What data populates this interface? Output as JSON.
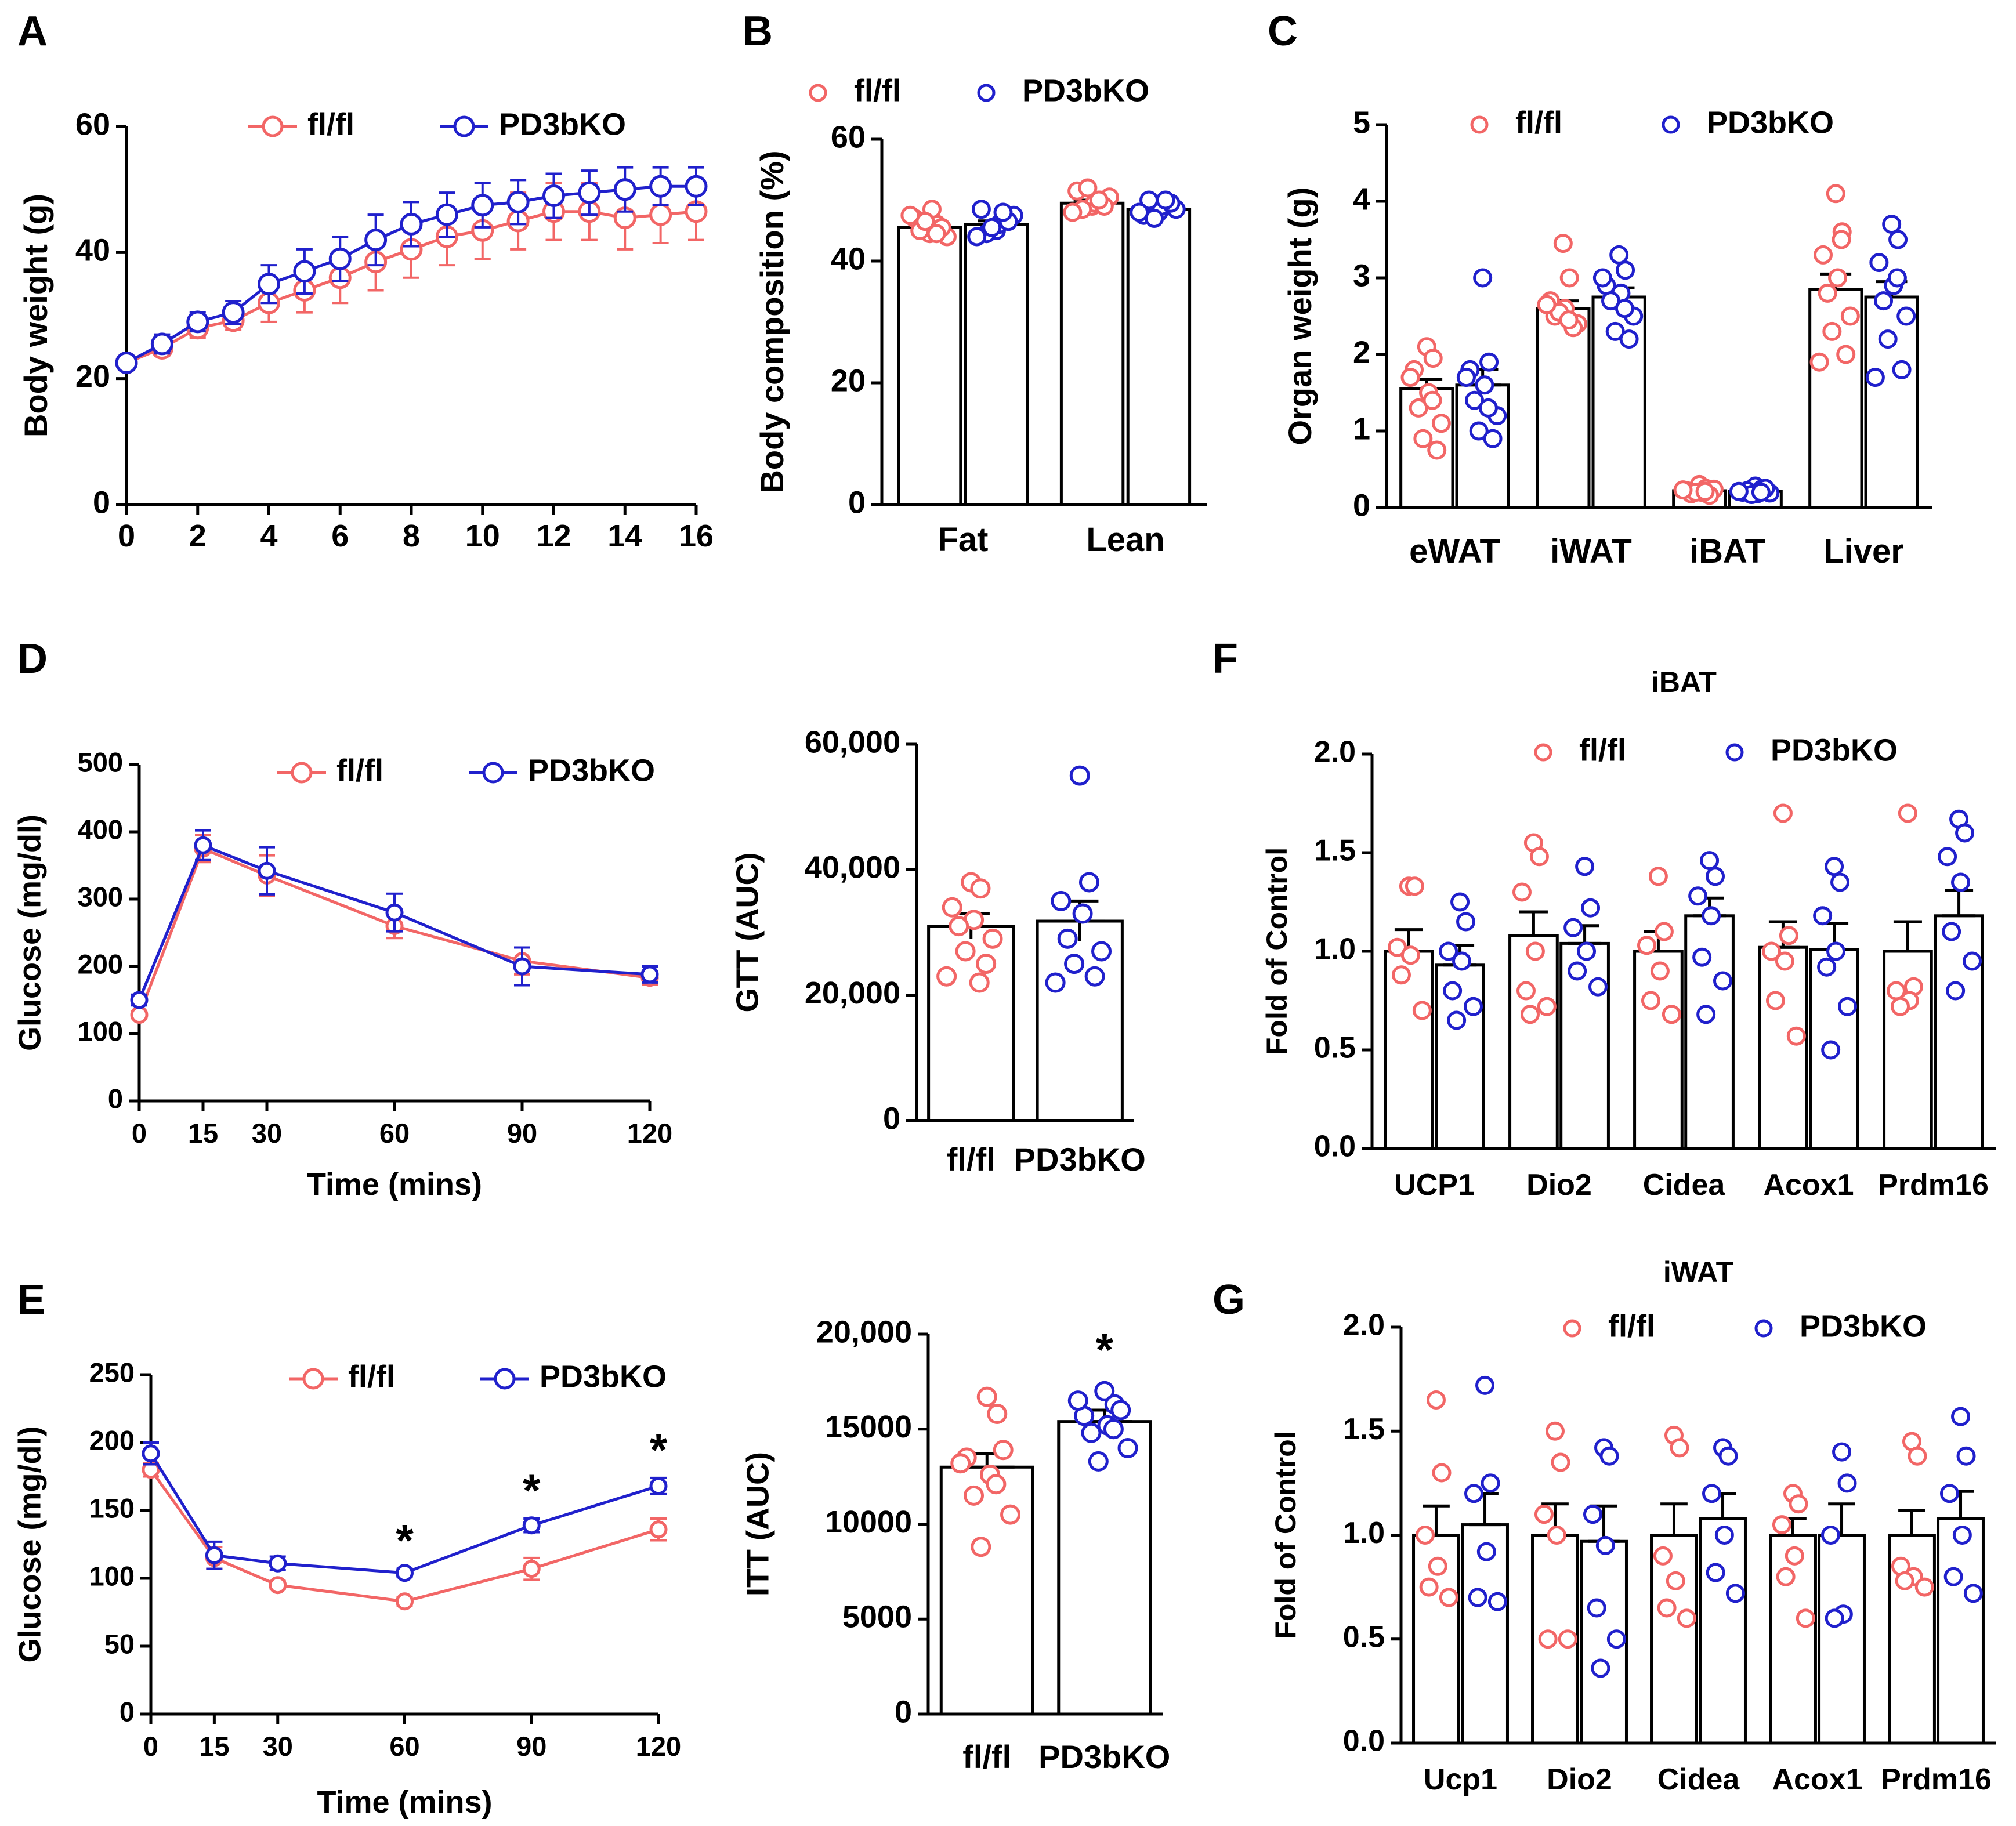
{
  "colors": {
    "flfl": "#f26666",
    "ko": "#2020cc",
    "axis": "#000000"
  },
  "chart_data": [
    {
      "id": "A",
      "type": "line",
      "panel_letter": "A",
      "ylabel": "Body weight (g)",
      "xlabel": "",
      "xlim": [
        0,
        16
      ],
      "ylim": [
        0,
        60
      ],
      "xticks": [
        0,
        2,
        4,
        6,
        8,
        10,
        12,
        14,
        16
      ],
      "yticks": [
        0,
        20,
        40,
        60
      ],
      "legend": [
        "fl/fl",
        "PD3bKO"
      ],
      "x": [
        0,
        1,
        2,
        3,
        4,
        5,
        6,
        7,
        8,
        9,
        10,
        11,
        12,
        13,
        14,
        15,
        16
      ],
      "series": [
        {
          "name": "fl/fl",
          "color": "flfl",
          "values": [
            22.5,
            24.8,
            28,
            29.2,
            32,
            34,
            36,
            38.5,
            40.5,
            42.5,
            43.5,
            45,
            46.5,
            46.5,
            45.5,
            46,
            46.5
          ],
          "err": [
            1,
            1.2,
            1.5,
            1.5,
            3,
            3.5,
            4,
            4.5,
            4.5,
            4.5,
            4.5,
            4.5,
            4.5,
            4.5,
            5,
            4.5,
            4.5
          ]
        },
        {
          "name": "PD3bKO",
          "color": "ko",
          "values": [
            22.5,
            25.5,
            29,
            30.5,
            35,
            37,
            39,
            42,
            44.5,
            46,
            47.5,
            48,
            49,
            49.5,
            50,
            50.5,
            50.5
          ],
          "err": [
            1,
            1.5,
            1.5,
            1.8,
            3,
            3.5,
            3.5,
            4,
            3.5,
            3.5,
            3.5,
            3.5,
            3.5,
            3.5,
            3.5,
            3,
            3
          ]
        }
      ]
    },
    {
      "id": "B",
      "type": "bar",
      "panel_letter": "B",
      "ylabel": "Body composition (%)",
      "ylim": [
        0,
        60
      ],
      "yticks": [
        0,
        20,
        40,
        60
      ],
      "legend": [
        "fl/fl",
        "PD3bKO"
      ],
      "categories": [
        "Fat",
        "Lean"
      ],
      "series": [
        {
          "name": "fl/fl",
          "color": "flfl",
          "values": [
            45.5,
            49.5
          ],
          "err": [
            0.6,
            0.5
          ],
          "points": [
            [
              44.5,
              46,
              47,
              48.5,
              45,
              44,
              46.5,
              45.5,
              47.5,
              44.5
            ],
            [
              49,
              50,
              51.5,
              49.5,
              48.5,
              50.5,
              52,
              49,
              48,
              50
            ]
          ]
        },
        {
          "name": "PD3bKO",
          "color": "ko",
          "values": [
            46,
            48.5
          ],
          "err": [
            0.6,
            0.5
          ],
          "points": [
            [
              45,
              47,
              48.5,
              46,
              44.5,
              47.5,
              45.5,
              46.5,
              44,
              48
            ],
            [
              48,
              49.5,
              47.5,
              49,
              50,
              48.5,
              47,
              49.5,
              48,
              50
            ]
          ]
        }
      ]
    },
    {
      "id": "C",
      "type": "bar",
      "panel_letter": "C",
      "ylabel": "Organ weight (g)",
      "ylim": [
        0,
        5
      ],
      "yticks": [
        0,
        1,
        2,
        3,
        4,
        5
      ],
      "legend": [
        "fl/fl",
        "PD3bKO"
      ],
      "categories": [
        "eWAT",
        "iWAT",
        "iBAT",
        "Liver"
      ],
      "series": [
        {
          "name": "fl/fl",
          "color": "flfl",
          "values": [
            1.55,
            2.6,
            0.22,
            2.85
          ],
          "err": [
            0.12,
            0.1,
            0.02,
            0.2
          ],
          "points": [
            [
              2.1,
              1.95,
              1.8,
              1.5,
              1.3,
              1.1,
              0.9,
              0.75,
              1.7,
              1.4
            ],
            [
              3.45,
              3.0,
              2.7,
              2.6,
              2.5,
              2.4,
              2.55,
              2.35,
              2.65,
              2.45
            ],
            [
              0.3,
              0.25,
              0.22,
              0.2,
              0.18,
              0.24,
              0.2,
              0.16,
              0.23,
              0.21
            ],
            [
              4.1,
              3.6,
              3.3,
              3.0,
              2.8,
              2.5,
              2.3,
              2.0,
              1.9,
              3.5
            ]
          ]
        },
        {
          "name": "PD3bKO",
          "color": "ko",
          "values": [
            1.6,
            2.75,
            0.21,
            2.75
          ],
          "err": [
            0.2,
            0.12,
            0.02,
            0.2
          ],
          "points": [
            [
              3.0,
              1.9,
              1.8,
              1.6,
              1.4,
              1.2,
              1.0,
              0.9,
              1.7,
              1.3
            ],
            [
              3.3,
              3.1,
              2.9,
              2.8,
              2.7,
              2.5,
              2.3,
              2.2,
              3.0,
              2.6
            ],
            [
              0.28,
              0.24,
              0.2,
              0.18,
              0.22,
              0.19,
              0.17,
              0.25,
              0.21,
              0.2
            ],
            [
              3.7,
              3.5,
              3.2,
              2.9,
              2.7,
              2.5,
              2.2,
              1.8,
              1.7,
              3.0
            ]
          ]
        }
      ]
    },
    {
      "id": "D1",
      "type": "line",
      "panel_letter": "D",
      "ylabel": "Glucose (mg/dl)",
      "xlabel": "Time (mins)",
      "xlim": [
        0,
        120
      ],
      "ylim": [
        0,
        500
      ],
      "xticks": [
        0,
        15,
        30,
        60,
        90,
        120
      ],
      "yticks": [
        0,
        100,
        200,
        300,
        400,
        500
      ],
      "legend": [
        "fl/fl",
        "PD3bKO"
      ],
      "x": [
        0,
        15,
        30,
        60,
        90,
        120
      ],
      "series": [
        {
          "name": "fl/fl",
          "color": "flfl",
          "values": [
            128,
            375,
            335,
            260,
            208,
            183
          ],
          "err": [
            5,
            20,
            30,
            18,
            20,
            10
          ]
        },
        {
          "name": "PD3bKO",
          "color": "ko",
          "values": [
            150,
            380,
            342,
            280,
            200,
            188
          ],
          "err": [
            8,
            22,
            35,
            28,
            28,
            12
          ]
        }
      ]
    },
    {
      "id": "D2",
      "type": "bar",
      "panel_letter": "",
      "ylabel": "GTT (AUC)",
      "ylim": [
        0,
        60000
      ],
      "yticks": [
        0,
        20000,
        40000,
        60000
      ],
      "ytick_labels": [
        "0",
        "20,000",
        "40,000",
        "60,000"
      ],
      "categories": [
        "fl/fl",
        "PD3bKO"
      ],
      "values": [
        31000,
        31800
      ],
      "err": [
        2000,
        3200
      ],
      "bar_colors": [
        "flfl",
        "ko"
      ],
      "points": [
        [
          38000,
          37000,
          34000,
          32000,
          31000,
          29000,
          27000,
          25000,
          23000,
          22000
        ],
        [
          55000,
          38000,
          35000,
          33000,
          29000,
          27000,
          25000,
          23000,
          22000
        ]
      ]
    },
    {
      "id": "E1",
      "type": "line",
      "panel_letter": "E",
      "ylabel": "Glucose (mg/dl)",
      "xlabel": "Time (mins)",
      "xlim": [
        0,
        120
      ],
      "ylim": [
        0,
        250
      ],
      "xticks": [
        0,
        15,
        30,
        60,
        90,
        120
      ],
      "yticks": [
        0,
        50,
        100,
        150,
        200,
        250
      ],
      "legend": [
        "fl/fl",
        "PD3bKO"
      ],
      "x": [
        0,
        15,
        30,
        60,
        90,
        120
      ],
      "series": [
        {
          "name": "fl/fl",
          "color": "flfl",
          "values": [
            180,
            115,
            95,
            83,
            107,
            136
          ],
          "err": [
            5,
            8,
            3,
            3,
            8,
            8
          ]
        },
        {
          "name": "PD3bKO",
          "color": "ko",
          "values": [
            192,
            117,
            111,
            104,
            139,
            168
          ],
          "err": [
            8,
            10,
            5,
            3,
            5,
            6
          ]
        }
      ],
      "significance": [
        {
          "x": 60,
          "label": "*"
        },
        {
          "x": 90,
          "label": "*"
        },
        {
          "x": 120,
          "label": "*"
        }
      ]
    },
    {
      "id": "E2",
      "type": "bar",
      "panel_letter": "",
      "ylabel": "ITT (AUC)",
      "ylim": [
        0,
        20000
      ],
      "yticks": [
        0,
        5000,
        10000,
        15000,
        20000
      ],
      "ytick_labels": [
        "0",
        "5000",
        "10000",
        "15000",
        "20,000"
      ],
      "categories": [
        "fl/fl",
        "PD3bKO"
      ],
      "values": [
        13000,
        15400
      ],
      "err": [
        700,
        600
      ],
      "bar_colors": [
        "flfl",
        "ko"
      ],
      "points": [
        [
          16700,
          15800,
          13500,
          12600,
          11500,
          10500,
          8800,
          13900,
          13200,
          12100
        ],
        [
          17000,
          16300,
          15700,
          15200,
          14800,
          14000,
          13300,
          16000,
          16500,
          15000
        ]
      ],
      "significance": [
        {
          "category": "PD3bKO",
          "label": "*"
        }
      ]
    },
    {
      "id": "F",
      "type": "bar",
      "panel_letter": "F",
      "title": "iBAT",
      "ylabel": "Fold of Control",
      "ylim": [
        0,
        2.0
      ],
      "yticks": [
        0,
        0.5,
        1.0,
        1.5,
        2.0
      ],
      "ytick_labels": [
        "0.0",
        "0.5",
        "1.0",
        "1.5",
        "2.0"
      ],
      "legend": [
        "fl/fl",
        "PD3bKO"
      ],
      "categories": [
        "UCP1",
        "Dio2",
        "Cidea",
        "Acox1",
        "Prdm16"
      ],
      "series": [
        {
          "name": "fl/fl",
          "color": "flfl",
          "values": [
            1.0,
            1.08,
            1.0,
            1.02,
            1.0
          ],
          "err": [
            0.11,
            0.12,
            0.1,
            0.13,
            0.15
          ],
          "points": [
            [
              1.33,
              1.33,
              1.02,
              0.98,
              0.88,
              0.7
            ],
            [
              1.55,
              1.48,
              1.3,
              1.0,
              0.8,
              0.72,
              0.68
            ],
            [
              1.38,
              1.1,
              1.03,
              0.9,
              0.75,
              0.68
            ],
            [
              1.7,
              1.08,
              1.0,
              0.95,
              0.75,
              0.57
            ],
            [
              1.7,
              0.82,
              0.8,
              0.75,
              0.72
            ]
          ]
        },
        {
          "name": "PD3bKO",
          "color": "ko",
          "values": [
            0.93,
            1.04,
            1.18,
            1.01,
            1.18
          ],
          "err": [
            0.1,
            0.09,
            0.09,
            0.13,
            0.13
          ],
          "points": [
            [
              1.25,
              1.15,
              1.0,
              0.95,
              0.8,
              0.72,
              0.65
            ],
            [
              1.43,
              1.22,
              1.12,
              1.0,
              0.9,
              0.82
            ],
            [
              1.46,
              1.38,
              1.28,
              1.18,
              0.97,
              0.85,
              0.68
            ],
            [
              1.43,
              1.35,
              1.18,
              1.0,
              0.92,
              0.72,
              0.5
            ],
            [
              1.67,
              1.6,
              1.48,
              1.35,
              1.1,
              0.95,
              0.8
            ]
          ]
        }
      ]
    },
    {
      "id": "G",
      "type": "bar",
      "panel_letter": "G",
      "title": "iWAT",
      "ylabel": "Fold of Control",
      "ylim": [
        0,
        2.0
      ],
      "yticks": [
        0,
        0.5,
        1.0,
        1.5,
        2.0
      ],
      "ytick_labels": [
        "0.0",
        "0.5",
        "1.0",
        "1.5",
        "2.0"
      ],
      "legend": [
        "fl/fl",
        "PD3bKO"
      ],
      "categories": [
        "Ucp1",
        "Dio2",
        "Cidea",
        "Acox1",
        "Prdm16"
      ],
      "series": [
        {
          "name": "fl/fl",
          "color": "flfl",
          "values": [
            1.0,
            1.0,
            1.0,
            1.0,
            1.0
          ],
          "err": [
            0.14,
            0.15,
            0.15,
            0.08,
            0.12
          ],
          "points": [
            [
              1.65,
              1.3,
              1.0,
              0.85,
              0.75,
              0.7
            ],
            [
              1.5,
              1.35,
              1.1,
              1.0,
              0.5,
              0.5
            ],
            [
              1.48,
              1.42,
              0.9,
              0.78,
              0.65,
              0.6
            ],
            [
              1.2,
              1.15,
              1.05,
              0.9,
              0.8,
              0.6
            ],
            [
              1.45,
              1.38,
              0.85,
              0.8,
              0.78,
              0.75
            ]
          ]
        },
        {
          "name": "PD3bKO",
          "color": "ko",
          "values": [
            1.05,
            0.97,
            1.08,
            1.0,
            1.08
          ],
          "err": [
            0.15,
            0.17,
            0.12,
            0.15,
            0.13
          ],
          "points": [
            [
              1.72,
              1.25,
              1.2,
              0.92,
              0.7,
              0.68
            ],
            [
              1.42,
              1.38,
              1.1,
              0.95,
              0.65,
              0.5,
              0.36
            ],
            [
              1.42,
              1.38,
              1.2,
              1.0,
              0.82,
              0.72
            ],
            [
              1.4,
              1.25,
              1.0,
              0.62,
              0.6
            ],
            [
              1.57,
              1.38,
              1.2,
              1.0,
              0.8,
              0.72
            ]
          ]
        }
      ]
    }
  ]
}
